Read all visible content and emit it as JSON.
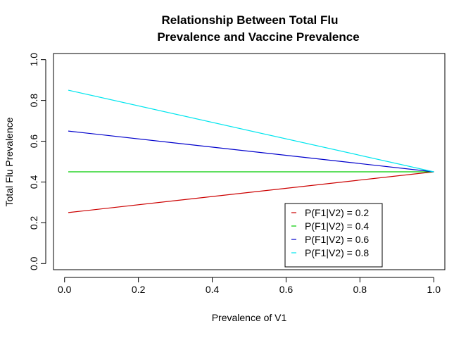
{
  "chart_data": {
    "type": "line",
    "title_lines": [
      "Relationship Between Total Flu",
      "Prevalence and Vaccine Prevalence"
    ],
    "xlabel": "Prevalence of V1",
    "ylabel": "Total Flu Prevalence",
    "xlim": [
      -0.03,
      1.03
    ],
    "ylim": [
      -0.03,
      1.03
    ],
    "xticks": [
      0.0,
      0.2,
      0.4,
      0.6,
      0.8,
      1.0
    ],
    "xtick_labels": [
      "0.0",
      "0.2",
      "0.4",
      "0.6",
      "0.8",
      "1.0"
    ],
    "yticks": [
      0.0,
      0.2,
      0.4,
      0.6,
      0.8,
      1.0
    ],
    "ytick_labels": [
      "0.0",
      "0.2",
      "0.4",
      "0.6",
      "0.8",
      "1.0"
    ],
    "grid": false,
    "legend_position": "bottom-right",
    "series": [
      {
        "name": "P(F1|V2) = 0.2",
        "color": "#cc0000",
        "x": [
          0.01,
          1.0
        ],
        "y": [
          0.25,
          0.45
        ]
      },
      {
        "name": "P(F1|V2) = 0.4",
        "color": "#00cc00",
        "x": [
          0.01,
          1.0
        ],
        "y": [
          0.45,
          0.45
        ]
      },
      {
        "name": "P(F1|V2) = 0.6",
        "color": "#0000cc",
        "x": [
          0.01,
          1.0
        ],
        "y": [
          0.65,
          0.45
        ]
      },
      {
        "name": "P(F1|V2) = 0.8",
        "color": "#00e5ee",
        "x": [
          0.01,
          1.0
        ],
        "y": [
          0.85,
          0.45
        ]
      }
    ]
  }
}
